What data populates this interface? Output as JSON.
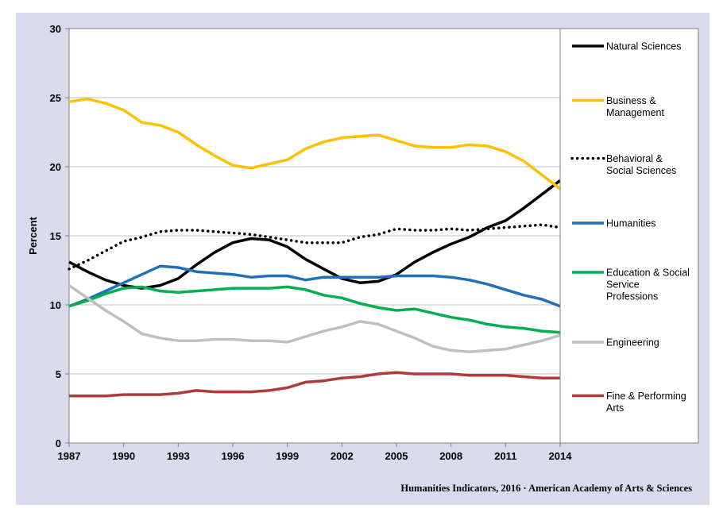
{
  "chart_data": {
    "type": "line",
    "title": "",
    "xlabel": "",
    "ylabel": "Percent",
    "xlim": [
      1987,
      2014
    ],
    "ylim": [
      0,
      30
    ],
    "x_ticks": [
      1987,
      1990,
      1993,
      1996,
      1999,
      2002,
      2005,
      2008,
      2011,
      2014
    ],
    "y_ticks": [
      0,
      5,
      10,
      15,
      20,
      25,
      30
    ],
    "grid": "horizontal",
    "legend_position": "right",
    "x": [
      1987,
      1988,
      1989,
      1990,
      1991,
      1992,
      1993,
      1994,
      1995,
      1996,
      1997,
      1998,
      1999,
      2000,
      2001,
      2002,
      2003,
      2004,
      2005,
      2006,
      2007,
      2008,
      2009,
      2010,
      2011,
      2012,
      2013,
      2014
    ],
    "series": [
      {
        "name": "Natural Sciences",
        "color": "#000000",
        "dash": "solid",
        "values": [
          13.1,
          12.4,
          11.8,
          11.4,
          11.2,
          11.4,
          11.9,
          12.9,
          13.8,
          14.5,
          14.8,
          14.7,
          14.2,
          13.3,
          12.6,
          11.9,
          11.6,
          11.7,
          12.2,
          13.1,
          13.8,
          14.4,
          14.9,
          15.6,
          16.1,
          17.0,
          18.0,
          19.0
        ]
      },
      {
        "name": "Business & Management",
        "color": "#ffc000",
        "dash": "solid",
        "values": [
          24.7,
          24.9,
          24.6,
          24.1,
          23.2,
          23.0,
          22.5,
          21.6,
          20.8,
          20.1,
          19.9,
          20.2,
          20.5,
          21.3,
          21.8,
          22.1,
          22.2,
          22.3,
          21.9,
          21.5,
          21.4,
          21.4,
          21.6,
          21.5,
          21.1,
          20.4,
          19.4,
          18.4
        ]
      },
      {
        "name": "Behavioral & Social Sciences",
        "color": "#000000",
        "dash": "dotted",
        "values": [
          12.6,
          13.2,
          13.9,
          14.6,
          14.9,
          15.3,
          15.4,
          15.4,
          15.3,
          15.2,
          15.1,
          14.9,
          14.7,
          14.5,
          14.5,
          14.5,
          14.9,
          15.1,
          15.5,
          15.4,
          15.4,
          15.5,
          15.4,
          15.5,
          15.6,
          15.7,
          15.8,
          15.6
        ]
      },
      {
        "name": "Humanities",
        "color": "#1f6fbf",
        "dash": "solid",
        "values": [
          9.9,
          10.4,
          11.0,
          11.6,
          12.2,
          12.8,
          12.7,
          12.4,
          12.3,
          12.2,
          12.0,
          12.1,
          12.1,
          11.8,
          12.0,
          12.0,
          12.0,
          12.0,
          12.1,
          12.1,
          12.1,
          12.0,
          11.8,
          11.5,
          11.1,
          10.7,
          10.4,
          9.9
        ]
      },
      {
        "name": "Education & Social Service Professions",
        "color": "#00b050",
        "dash": "solid",
        "values": [
          9.9,
          10.3,
          10.8,
          11.2,
          11.3,
          11.0,
          10.9,
          11.0,
          11.1,
          11.2,
          11.2,
          11.2,
          11.3,
          11.1,
          10.7,
          10.5,
          10.1,
          9.8,
          9.6,
          9.7,
          9.4,
          9.1,
          8.9,
          8.6,
          8.4,
          8.3,
          8.1,
          8.0
        ]
      },
      {
        "name": "Engineering",
        "color": "#bfbfbf",
        "dash": "solid",
        "values": [
          11.4,
          10.5,
          9.6,
          8.8,
          7.9,
          7.6,
          7.4,
          7.4,
          7.5,
          7.5,
          7.4,
          7.4,
          7.3,
          7.7,
          8.1,
          8.4,
          8.8,
          8.6,
          8.1,
          7.6,
          7.0,
          6.7,
          6.6,
          6.7,
          6.8,
          7.1,
          7.4,
          7.8
        ]
      },
      {
        "name": "Fine & Performing Arts",
        "color": "#b03a3a",
        "dash": "solid",
        "values": [
          3.4,
          3.4,
          3.4,
          3.5,
          3.5,
          3.5,
          3.6,
          3.8,
          3.7,
          3.7,
          3.7,
          3.8,
          4.0,
          4.4,
          4.5,
          4.7,
          4.8,
          5.0,
          5.1,
          5.0,
          5.0,
          5.0,
          4.9,
          4.9,
          4.9,
          4.8,
          4.7,
          4.7
        ]
      }
    ],
    "legend_labels": [
      [
        "Natural Sciences"
      ],
      [
        "Business &",
        "Management"
      ],
      [
        "Behavioral &",
        "Social Sciences"
      ],
      [
        "Humanities"
      ],
      [
        "Education & Social",
        "Service",
        "Professions"
      ],
      [
        "Engineering"
      ],
      [
        "Fine & Performing",
        "Arts"
      ]
    ],
    "credit": "Humanities Indicators, 2016 · American Academy of Arts & Sciences"
  }
}
